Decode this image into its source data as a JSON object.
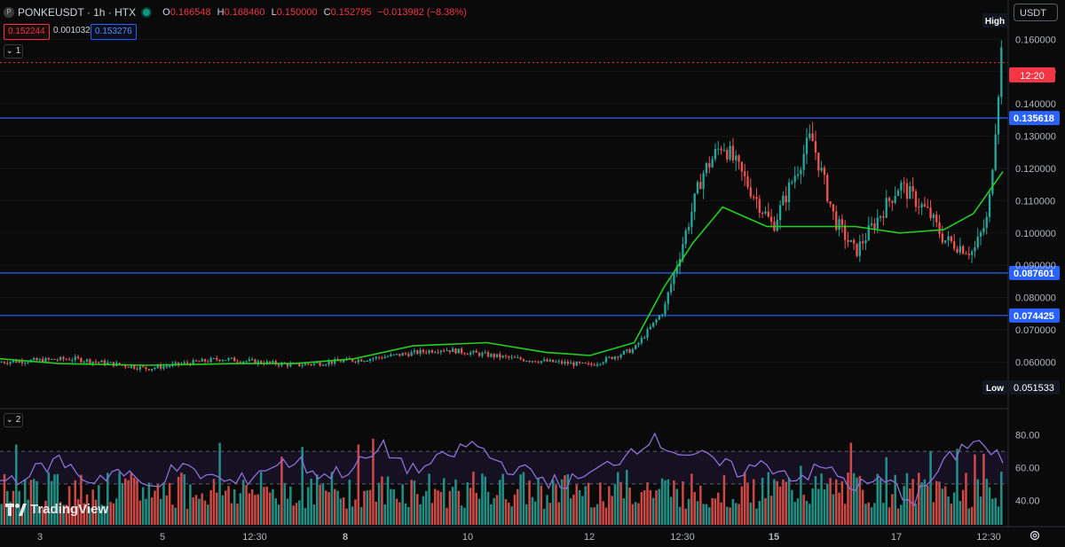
{
  "legend": {
    "symbol_icon": "P",
    "symbol": "PONKEUSDT · 1h · HTX",
    "open_label": "O",
    "open": "0.166548",
    "high_label": "H",
    "high": "0.168460",
    "low_label": "L",
    "low": "0.150000",
    "close_label": "C",
    "close": "0.152795",
    "change": "−0.013982 (−8.38%)",
    "bid": "0.152244",
    "spread": "0.001032",
    "ask": "0.153276"
  },
  "pane1_label": "1",
  "pane2_label": "2",
  "currency_button": "USDT",
  "watermark": "TradingView",
  "price_scale": {
    "ticks": [
      "0.160000",
      "0.150000",
      "0.140000",
      "0.130000",
      "0.120000",
      "0.110000",
      "0.100000",
      "0.090000",
      "0.080000",
      "0.070000",
      "0.060000"
    ],
    "high_label": "High",
    "low_label": "Low",
    "low_value": "0.051533",
    "countdown": "12:20"
  },
  "horizontal_lines": [
    {
      "value": 0.135618,
      "label": "0.135618",
      "color": "#2962ff"
    },
    {
      "value": 0.087601,
      "label": "0.087601",
      "color": "#2962ff"
    },
    {
      "value": 0.074425,
      "label": "0.074425",
      "color": "#2962ff"
    }
  ],
  "rsi_scale": {
    "ticks": [
      "80.00",
      "60.00",
      "40.00"
    ],
    "upper_band": 70,
    "lower_band": 50
  },
  "time_axis": [
    "3",
    "5",
    "12:30",
    "8",
    "10",
    "12",
    "12:30",
    "15",
    "17",
    "12:30"
  ],
  "colors": {
    "up": "#26a69a",
    "down": "#ef5350",
    "ma": "#22d11f",
    "rsi": "#8e6fd8",
    "accent": "#2962ff",
    "last_price": "#f23645"
  },
  "chart_data": [
    {
      "type": "candlestick",
      "title": "PONKEUSDT · 1h · HTX",
      "ylim": [
        0.048,
        0.17
      ],
      "series": [
        {
          "name": "price",
          "x": [
            0,
            25,
            50,
            75,
            100,
            125,
            150,
            175,
            200,
            215,
            225,
            238,
            245,
            262,
            275,
            283,
            290,
            300,
            305,
            315,
            320,
            330,
            335,
            340
          ],
          "y": [
            0.06,
            0.061,
            0.058,
            0.061,
            0.059,
            0.061,
            0.064,
            0.061,
            0.059,
            0.064,
            0.076,
            0.118,
            0.128,
            0.102,
            0.13,
            0.104,
            0.094,
            0.108,
            0.115,
            0.106,
            0.098,
            0.094,
            0.105,
            0.162
          ]
        },
        {
          "name": "moving average",
          "x": [
            0,
            20,
            50,
            80,
            100,
            120,
            140,
            165,
            185,
            200,
            215,
            225,
            235,
            245,
            260,
            275,
            290,
            305,
            320,
            330,
            340
          ],
          "y": [
            0.061,
            0.0595,
            0.059,
            0.0595,
            0.0595,
            0.061,
            0.065,
            0.066,
            0.063,
            0.062,
            0.066,
            0.083,
            0.097,
            0.108,
            0.102,
            0.102,
            0.102,
            0.1,
            0.101,
            0.106,
            0.119
          ]
        }
      ]
    },
    {
      "type": "line",
      "title": "",
      "ylim": [
        25,
        95
      ],
      "series": [
        {
          "name": "RSI",
          "x": [
            0,
            10,
            20,
            30,
            40,
            50,
            60,
            70,
            80,
            90,
            100,
            110,
            120,
            130,
            140,
            150,
            160,
            170,
            180,
            190,
            200,
            210,
            220,
            230,
            240,
            250,
            260,
            270,
            280,
            290,
            300,
            310,
            320,
            330,
            340
          ],
          "y": [
            52,
            56,
            65,
            52,
            58,
            48,
            60,
            55,
            50,
            60,
            64,
            55,
            60,
            72,
            58,
            65,
            75,
            62,
            56,
            50,
            55,
            66,
            78,
            70,
            65,
            58,
            62,
            54,
            60,
            48,
            52,
            40,
            62,
            78,
            64
          ]
        }
      ]
    }
  ]
}
